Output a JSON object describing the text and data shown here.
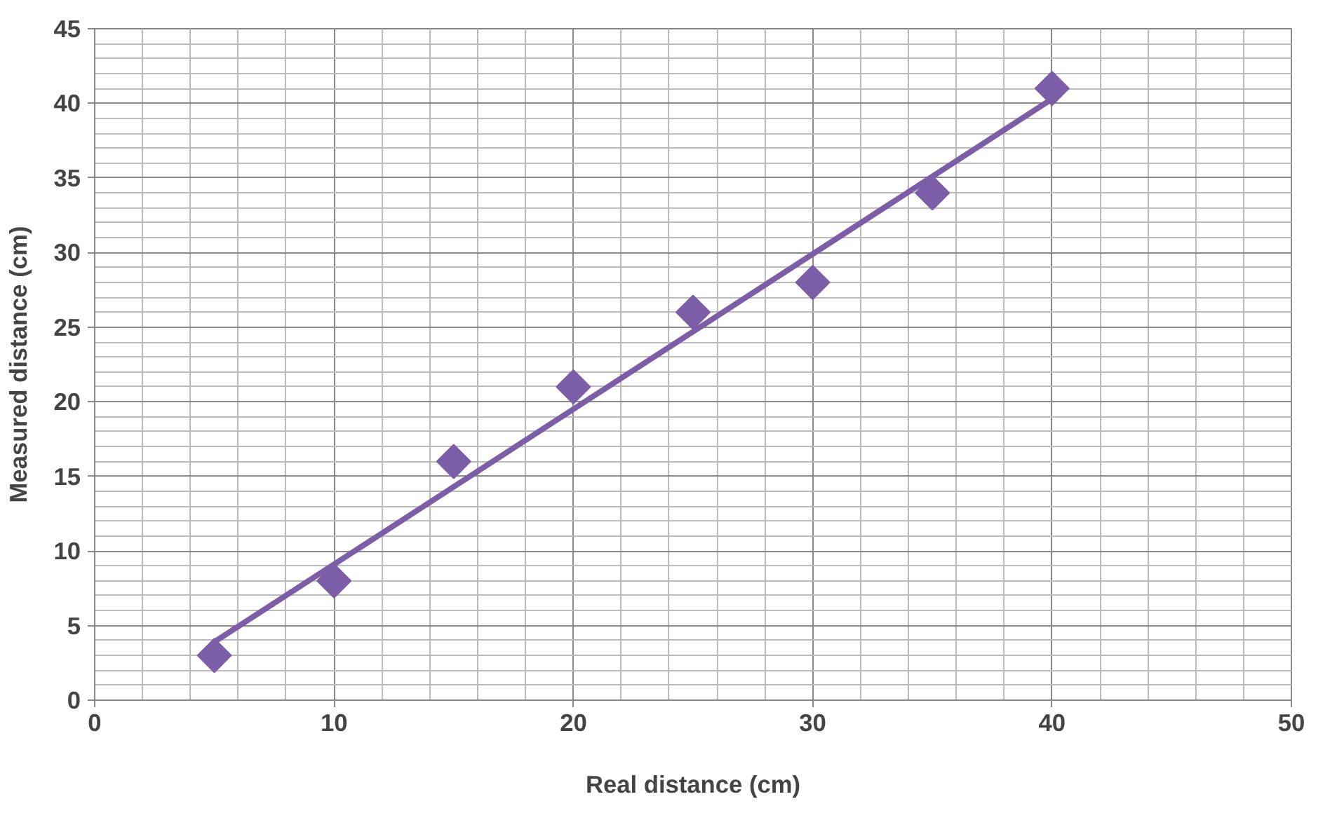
{
  "chart_data": {
    "type": "scatter",
    "xlabel": "Real distance (cm)",
    "ylabel": "Measured distance (cm)",
    "xlim": [
      0,
      50
    ],
    "ylim": [
      0,
      45
    ],
    "xticks": [
      0,
      10,
      20,
      30,
      40,
      50
    ],
    "yticks": [
      0,
      5,
      10,
      15,
      20,
      25,
      30,
      35,
      40,
      45
    ],
    "grid": true,
    "marker": "diamond",
    "series": [
      {
        "color": "#7b5ea7",
        "x": [
          5,
          10,
          15,
          20,
          25,
          30,
          35,
          40
        ],
        "values": [
          3,
          8,
          16,
          21,
          26,
          28,
          34,
          41
        ]
      },
      {
        "type": "line",
        "color": "#7b5ea7",
        "x": [
          5,
          40
        ],
        "values": [
          3.9,
          40.3
        ],
        "line_style": "solid",
        "marker": "none"
      }
    ]
  }
}
